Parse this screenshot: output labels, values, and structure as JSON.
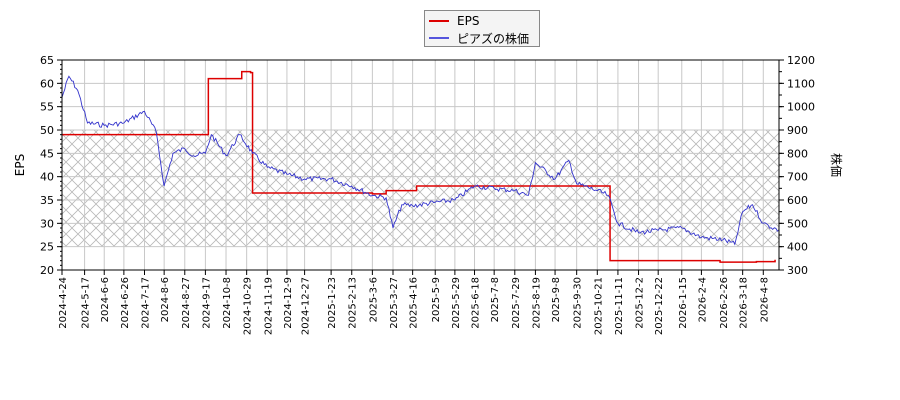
{
  "chart_data": {
    "type": "line",
    "title": "",
    "legend": {
      "position": "top-center",
      "entries": [
        "EPS",
        "ピアズの株価"
      ]
    },
    "left_axis": {
      "label": "EPS",
      "range": [
        20,
        65
      ],
      "ticks": [
        20,
        25,
        30,
        35,
        40,
        45,
        50,
        55,
        60,
        65
      ]
    },
    "right_axis": {
      "label": "株価",
      "range": [
        300,
        1200
      ],
      "ticks": [
        300,
        400,
        500,
        600,
        700,
        800,
        900,
        1000,
        1100,
        1200
      ]
    },
    "grid": true,
    "hatched_band": {
      "eps_range": [
        25,
        50
      ],
      "price_range": [
        400,
        900
      ]
    },
    "x_tick_labels": [
      "2024-4-24",
      "2024-5-17",
      "2024-6-6",
      "2024-6-26",
      "2024-7-17",
      "2024-8-6",
      "2024-8-27",
      "2024-9-17",
      "2024-10-8",
      "2024-10-29",
      "2024-11-19",
      "2024-12-9",
      "2024-12-27",
      "2025-1-23",
      "2025-2-13",
      "2025-3-6",
      "2025-3-27",
      "2025-4-16",
      "2025-5-9",
      "2025-5-29",
      "2025-6-18",
      "2025-7-8",
      "2025-7-29",
      "2025-8-19",
      "2025-9-8",
      "2025-9-30",
      "2025-10-21",
      "2025-11-11",
      "2025-12-2",
      "2025-12-22",
      "2026-1-15",
      "2026-2-4",
      "2026-2-26",
      "2026-3-18",
      "2026-4-8"
    ],
    "series": [
      {
        "name": "EPS",
        "axis": "left",
        "color": "#dd0000",
        "points": [
          [
            "2024-4-24",
            49.0
          ],
          [
            "2024-9-17",
            49.0
          ],
          [
            "2024-9-20",
            61.0
          ],
          [
            "2024-10-22",
            61.0
          ],
          [
            "2024-10-24",
            62.5
          ],
          [
            "2024-11-2",
            62.3
          ],
          [
            "2024-11-4",
            36.5
          ],
          [
            "2025-3-6",
            36.3
          ],
          [
            "2025-3-20",
            37.0
          ],
          [
            "2025-4-20",
            38.0
          ],
          [
            "2025-11-1",
            38.0
          ],
          [
            "2025-11-3",
            22.0
          ],
          [
            "2026-2-20",
            22.0
          ],
          [
            "2026-2-23",
            21.7
          ],
          [
            "2026-4-1",
            21.8
          ],
          [
            "2026-4-20",
            22.2
          ]
        ]
      },
      {
        "name": "ピアズの株価",
        "axis": "right",
        "color": "#3333cc",
        "points": [
          [
            "2024-4-24",
            1040
          ],
          [
            "2024-5-1",
            1130
          ],
          [
            "2024-5-10",
            1070
          ],
          [
            "2024-5-20",
            930
          ],
          [
            "2024-6-6",
            920
          ],
          [
            "2024-6-26",
            930
          ],
          [
            "2024-7-17",
            980
          ],
          [
            "2024-7-29",
            890
          ],
          [
            "2024-8-6",
            660
          ],
          [
            "2024-8-15",
            800
          ],
          [
            "2024-8-27",
            820
          ],
          [
            "2024-9-5",
            790
          ],
          [
            "2024-9-17",
            800
          ],
          [
            "2024-9-23",
            880
          ],
          [
            "2024-10-8",
            790
          ],
          [
            "2024-10-22",
            880
          ],
          [
            "2024-11-4",
            800
          ],
          [
            "2024-11-19",
            740
          ],
          [
            "2024-12-9",
            710
          ],
          [
            "2024-12-27",
            690
          ],
          [
            "2025-1-23",
            690
          ],
          [
            "2025-2-13",
            660
          ],
          [
            "2025-3-6",
            620
          ],
          [
            "2025-3-20",
            610
          ],
          [
            "2025-3-27",
            480
          ],
          [
            "2025-4-5",
            580
          ],
          [
            "2025-4-16",
            575
          ],
          [
            "2025-5-9",
            590
          ],
          [
            "2025-5-29",
            600
          ],
          [
            "2025-6-18",
            660
          ],
          [
            "2025-7-8",
            650
          ],
          [
            "2025-7-29",
            640
          ],
          [
            "2025-8-12",
            620
          ],
          [
            "2025-8-19",
            760
          ],
          [
            "2025-9-8",
            690
          ],
          [
            "2025-9-22",
            770
          ],
          [
            "2025-9-30",
            670
          ],
          [
            "2025-10-21",
            640
          ],
          [
            "2025-11-1",
            620
          ],
          [
            "2025-11-11",
            500
          ],
          [
            "2025-12-2",
            460
          ],
          [
            "2025-12-22",
            470
          ],
          [
            "2026-1-15",
            480
          ],
          [
            "2026-2-4",
            440
          ],
          [
            "2026-2-26",
            430
          ],
          [
            "2026-3-10",
            410
          ],
          [
            "2026-3-18",
            550
          ],
          [
            "2026-3-28",
            580
          ],
          [
            "2026-4-8",
            500
          ],
          [
            "2026-4-24",
            470
          ]
        ]
      }
    ]
  },
  "legend": {
    "eps_label": "EPS",
    "price_label": "ピアズの株価"
  },
  "axes": {
    "left_label": "EPS",
    "right_label": "株価"
  }
}
